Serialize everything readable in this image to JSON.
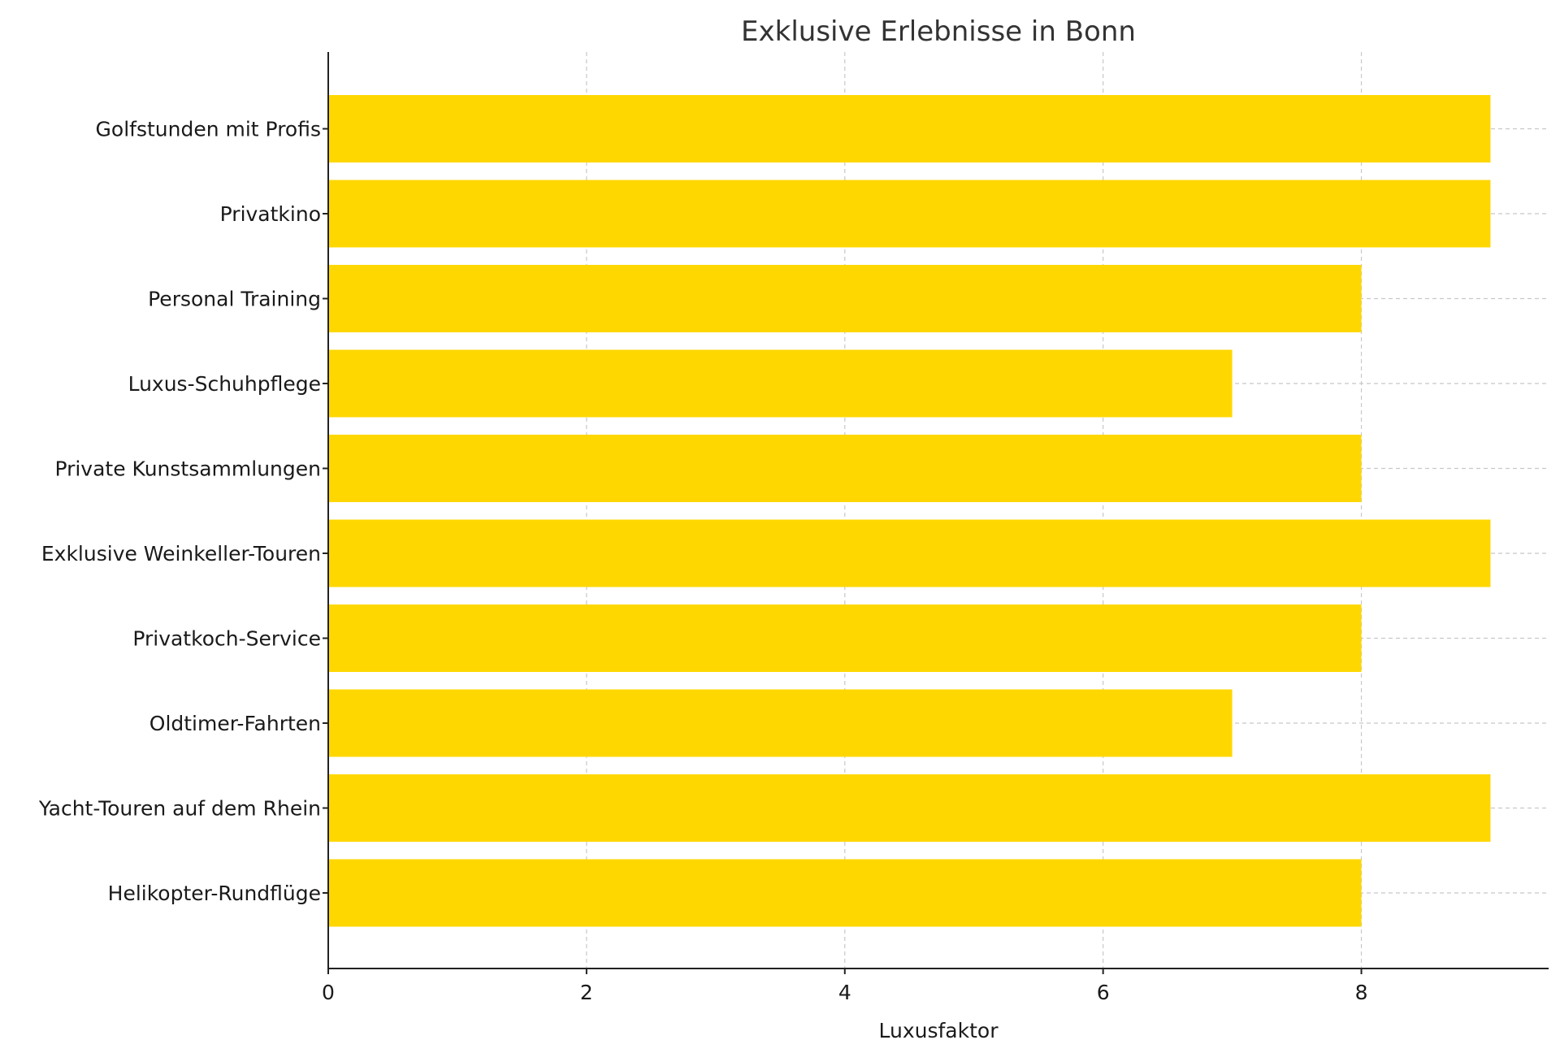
{
  "chart_data": {
    "type": "bar",
    "orientation": "horizontal",
    "title": "Exklusive Erlebnisse in Bonn",
    "xlabel": "Luxusfaktor",
    "ylabel": "",
    "categories": [
      "Helikopter-Rundflüge",
      "Yacht-Touren auf dem Rhein",
      "Oldtimer-Fahrten",
      "Privatkoch-Service",
      "Exklusive Weinkeller-Touren",
      "Private Kunstsammlungen",
      "Luxus-Schuhpflege",
      "Personal Training",
      "Privatkino",
      "Golfstunden mit Profis"
    ],
    "values": [
      8,
      9,
      7,
      8,
      9,
      8,
      7,
      8,
      9,
      9
    ],
    "xlim": [
      0,
      9.45
    ],
    "xticks": [
      0,
      2,
      4,
      6,
      8
    ],
    "grid": true,
    "bar_color": "#FFD700"
  }
}
